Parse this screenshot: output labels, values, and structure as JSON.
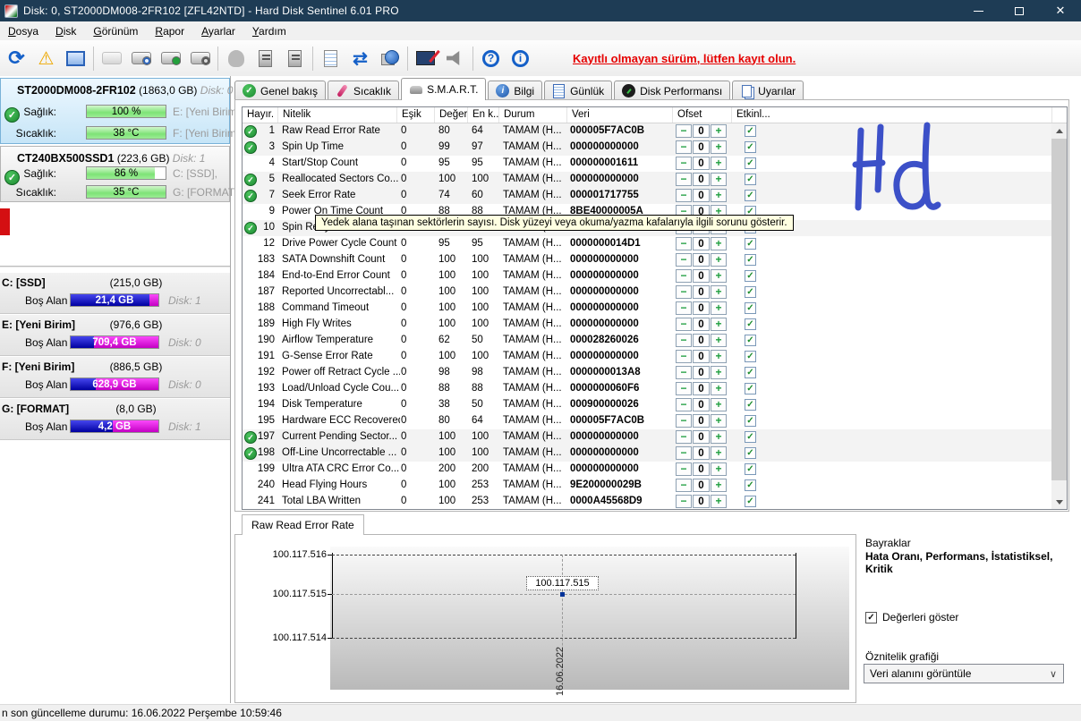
{
  "window": {
    "title": "Disk: 0, ST2000DM008-2FR102 [ZFL42NTD] - Hard Disk Sentinel 6.01 PRO",
    "controls": {
      "minimize": "minimize",
      "maximize": "maximize",
      "close": "✕"
    }
  },
  "menu": {
    "items": [
      "Dosya",
      "Disk",
      "Görünüm",
      "Rapor",
      "Ayarlar",
      "Yardım"
    ]
  },
  "toolbar": {
    "register_notice": "Kayıtlı olmayan sürüm, lütfen kayıt olun.",
    "items": [
      {
        "name": "refresh-icon",
        "type": "refresh",
        "glyph": "⟳"
      },
      {
        "name": "status-warning-icon",
        "type": "warn",
        "glyph": "⚠"
      },
      {
        "name": "disk-monitor-icon",
        "type": "monitor"
      },
      {
        "separator": true
      },
      {
        "name": "disk-disabled-icon",
        "type": "disk dim"
      },
      {
        "name": "disk-clock-icon",
        "type": "disk",
        "badge": "badge-clock"
      },
      {
        "name": "disk-accept-icon",
        "type": "disk",
        "badge": "badge-check"
      },
      {
        "name": "disk-search-icon",
        "type": "disk",
        "badge": "badge-search"
      },
      {
        "separator": true
      },
      {
        "name": "user-disabled-icon",
        "type": "ghost"
      },
      {
        "name": "drive-tower-icon",
        "type": "tower"
      },
      {
        "name": "drive-tower2-icon",
        "type": "tower"
      },
      {
        "separator": true
      },
      {
        "name": "report-icon",
        "type": "doc"
      },
      {
        "name": "sync-icon",
        "type": "sync",
        "glyph": "⇄"
      },
      {
        "name": "network-icon",
        "type": "net"
      },
      {
        "separator": true
      },
      {
        "name": "settings-monitor-icon",
        "type": "tool"
      },
      {
        "name": "sound-icon",
        "type": "speaker"
      },
      {
        "separator": true
      },
      {
        "name": "help-icon",
        "type": "ring",
        "glyph": "?"
      },
      {
        "name": "info-icon",
        "type": "ring",
        "glyph": "i"
      }
    ]
  },
  "sidebar": {
    "disks": [
      {
        "model": "ST2000DM008-2FR102",
        "size": "(1863,0 GB)",
        "disk_label": "Disk: 0",
        "rows": [
          {
            "label": "Sağlık:",
            "value": "100 %",
            "pct": 100,
            "vol": "E: [Yeni Birim]"
          },
          {
            "label": "Sıcaklık:",
            "value": "38 °C",
            "pct": 100,
            "vol": "F: [Yeni Birim]"
          }
        ]
      },
      {
        "model": "CT240BX500SSD1",
        "size": "(223,6 GB)",
        "disk_label": "Disk: 1",
        "rows": [
          {
            "label": "Sağlık:",
            "value": "86 %",
            "pct": 86,
            "vol": "C: [SSD],"
          },
          {
            "label": "Sıcaklık:",
            "value": "35 °C",
            "pct": 100,
            "vol": "G: [FORMAT]"
          }
        ]
      }
    ],
    "partitions": [
      {
        "name": "C: [SSD]",
        "size": "(215,0 GB)",
        "free_label": "Boş Alan",
        "free": "21,4 GB",
        "used_pct": 90,
        "disk_label": "Disk: 1"
      },
      {
        "name": "E: [Yeni Birim]",
        "size": "(976,6 GB)",
        "free_label": "Boş Alan",
        "free": "709,4 GB",
        "used_pct": 27,
        "disk_label": "Disk: 0"
      },
      {
        "name": "F: [Yeni Birim]",
        "size": "(886,5 GB)",
        "free_label": "Boş Alan",
        "free": "628,9 GB",
        "used_pct": 29,
        "disk_label": "Disk: 0"
      },
      {
        "name": "G: [FORMAT]",
        "size": "(8,0 GB)",
        "free_label": "Boş Alan",
        "free": "4,2 GB",
        "used_pct": 48,
        "disk_label": "Disk: 1"
      }
    ]
  },
  "tabs": [
    {
      "label": "Genel bakış",
      "icon": "check"
    },
    {
      "label": "Sıcaklık",
      "icon": "temp"
    },
    {
      "label": "S.M.A.R.T.",
      "icon": "smart",
      "active": true
    },
    {
      "label": "Bilgi",
      "icon": "info"
    },
    {
      "label": "Günlük",
      "icon": "log"
    },
    {
      "label": "Disk Performansı",
      "icon": "perf"
    },
    {
      "label": "Uyarılar",
      "icon": "alerts"
    }
  ],
  "table": {
    "columns": [
      "Hayır.",
      "Nitelik",
      "Eşik",
      "Değer",
      "En k...",
      "Durum",
      "Veri",
      "Ofset",
      "Etkinl..."
    ],
    "offset_minus": "−",
    "offset_value": "0",
    "offset_plus": "+",
    "check_glyph": "✓",
    "rows": [
      {
        "ok": true,
        "id": "1",
        "name": "Raw Read Error Rate",
        "threshold": "0",
        "value": "80",
        "worst": "64",
        "status": "TAMAM (H...",
        "data": "000005F7AC0B"
      },
      {
        "ok": true,
        "id": "3",
        "name": "Spin Up Time",
        "threshold": "0",
        "value": "99",
        "worst": "97",
        "status": "TAMAM (H...",
        "data": "000000000000"
      },
      {
        "ok": false,
        "id": "4",
        "name": "Start/Stop Count",
        "threshold": "0",
        "value": "95",
        "worst": "95",
        "status": "TAMAM (H...",
        "data": "000000001611"
      },
      {
        "ok": true,
        "id": "5",
        "name": "Reallocated Sectors Co...",
        "threshold": "0",
        "value": "100",
        "worst": "100",
        "status": "TAMAM (H...",
        "data": "000000000000"
      },
      {
        "ok": true,
        "id": "7",
        "name": "Seek Error Rate",
        "threshold": "0",
        "value": "74",
        "worst": "60",
        "status": "TAMAM (H...",
        "data": "000001717755"
      },
      {
        "ok": false,
        "id": "9",
        "name": "Power On Time Count",
        "threshold": "0",
        "value": "88",
        "worst": "88",
        "status": "TAMAM (H...",
        "data": "8BE40000005A"
      },
      {
        "ok": true,
        "id": "10",
        "name": "Spin Retry Count",
        "threshold": "0",
        "value": "100",
        "worst": "100",
        "status": "TAMAM (H...",
        "data": "000000000000"
      },
      {
        "ok": false,
        "id": "12",
        "name": "Drive Power Cycle Count",
        "threshold": "0",
        "value": "95",
        "worst": "95",
        "status": "TAMAM (H...",
        "data": "0000000014D1"
      },
      {
        "ok": false,
        "id": "183",
        "name": "SATA Downshift Count",
        "threshold": "0",
        "value": "100",
        "worst": "100",
        "status": "TAMAM (H...",
        "data": "000000000000"
      },
      {
        "ok": false,
        "id": "184",
        "name": "End-to-End Error Count",
        "threshold": "0",
        "value": "100",
        "worst": "100",
        "status": "TAMAM (H...",
        "data": "000000000000"
      },
      {
        "ok": false,
        "id": "187",
        "name": "Reported Uncorrectabl...",
        "threshold": "0",
        "value": "100",
        "worst": "100",
        "status": "TAMAM (H...",
        "data": "000000000000"
      },
      {
        "ok": false,
        "id": "188",
        "name": "Command Timeout",
        "threshold": "0",
        "value": "100",
        "worst": "100",
        "status": "TAMAM (H...",
        "data": "000000000000"
      },
      {
        "ok": false,
        "id": "189",
        "name": "High Fly Writes",
        "threshold": "0",
        "value": "100",
        "worst": "100",
        "status": "TAMAM (H...",
        "data": "000000000000"
      },
      {
        "ok": false,
        "id": "190",
        "name": "Airflow Temperature",
        "threshold": "0",
        "value": "62",
        "worst": "50",
        "status": "TAMAM (H...",
        "data": "000028260026"
      },
      {
        "ok": false,
        "id": "191",
        "name": "G-Sense Error Rate",
        "threshold": "0",
        "value": "100",
        "worst": "100",
        "status": "TAMAM (H...",
        "data": "000000000000"
      },
      {
        "ok": false,
        "id": "192",
        "name": "Power off Retract Cycle ...",
        "threshold": "0",
        "value": "98",
        "worst": "98",
        "status": "TAMAM (H...",
        "data": "0000000013A8"
      },
      {
        "ok": false,
        "id": "193",
        "name": "Load/Unload Cycle Cou...",
        "threshold": "0",
        "value": "88",
        "worst": "88",
        "status": "TAMAM (H...",
        "data": "0000000060F6"
      },
      {
        "ok": false,
        "id": "194",
        "name": "Disk Temperature",
        "threshold": "0",
        "value": "38",
        "worst": "50",
        "status": "TAMAM (H...",
        "data": "000900000026"
      },
      {
        "ok": false,
        "id": "195",
        "name": "Hardware ECC Recovered",
        "threshold": "0",
        "value": "80",
        "worst": "64",
        "status": "TAMAM (H...",
        "data": "000005F7AC0B"
      },
      {
        "ok": true,
        "id": "197",
        "name": "Current Pending Sector...",
        "threshold": "0",
        "value": "100",
        "worst": "100",
        "status": "TAMAM (H...",
        "data": "000000000000"
      },
      {
        "ok": true,
        "id": "198",
        "name": "Off-Line Uncorrectable ...",
        "threshold": "0",
        "value": "100",
        "worst": "100",
        "status": "TAMAM (H...",
        "data": "000000000000"
      },
      {
        "ok": false,
        "id": "199",
        "name": "Ultra ATA CRC Error Co...",
        "threshold": "0",
        "value": "200",
        "worst": "200",
        "status": "TAMAM (H...",
        "data": "000000000000"
      },
      {
        "ok": false,
        "id": "240",
        "name": "Head Flying Hours",
        "threshold": "0",
        "value": "100",
        "worst": "253",
        "status": "TAMAM (H...",
        "data": "9E200000029B"
      },
      {
        "ok": false,
        "id": "241",
        "name": "Total LBA Written",
        "threshold": "0",
        "value": "100",
        "worst": "253",
        "status": "TAMAM (H...",
        "data": "0000A45568D9"
      }
    ]
  },
  "tooltip": {
    "text": "Yedek alana taşınan sektörlerin sayısı. Disk yüzeyi veya okuma/yazma kafalarıyla ilgili sorunu gösterir."
  },
  "chart_data": {
    "type": "line",
    "title": "Raw Read Error Rate",
    "x": [
      "16.06.2022"
    ],
    "values": [
      100117515
    ],
    "point_label": "100.117.515",
    "y_ticks": [
      "100.117.516",
      "100.117.515",
      "100.117.514"
    ],
    "ylim": [
      100117514,
      100117516
    ],
    "grid": "dashed"
  },
  "flags_panel": {
    "title": "Bayraklar",
    "flags": "Hata Oranı, Performans, İstatistiksel, Kritik",
    "check_glyph": "✓",
    "show_values_label": "Değerleri göster",
    "attribute_graph_label": "Öznitelik grafiği",
    "selected_option": "Veri alanını görüntüle",
    "chevron": "∨"
  },
  "statusbar": {
    "text": "n son güncelleme durumu: 16.06.2022 Perşembe 10:59:46"
  },
  "annotations": {
    "handwriting": "Hd"
  }
}
